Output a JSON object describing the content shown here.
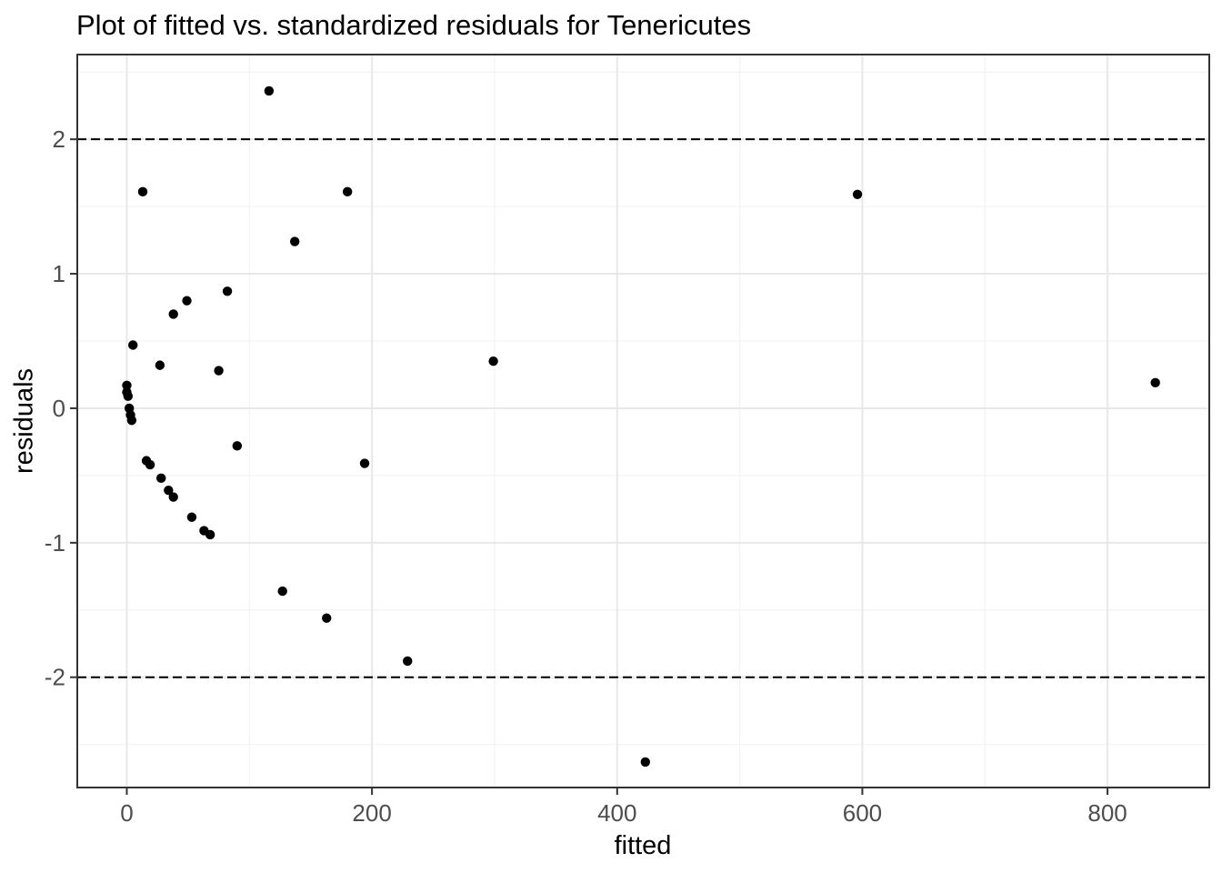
{
  "chart_data": {
    "type": "scatter",
    "title": "Plot of fitted vs. standardized residuals for Tenericutes",
    "xlabel": "fitted",
    "ylabel": "residuals",
    "xlim": [
      -40.4,
      883
    ],
    "ylim": [
      -2.82,
      2.63
    ],
    "x_major_ticks": [
      0,
      200,
      400,
      600,
      800
    ],
    "x_minor_gridlines": [
      100,
      300,
      500,
      700
    ],
    "y_major_ticks": [
      -2,
      -1,
      0,
      1,
      2
    ],
    "y_minor_gridlines": [
      -2.5,
      -1.5,
      -0.5,
      0.5,
      1.5,
      2.5
    ],
    "reference_lines": [
      {
        "y": 2,
        "style": "dashed"
      },
      {
        "y": -2,
        "style": "dashed"
      }
    ],
    "grid": true,
    "legend": "none",
    "points": [
      [
        116,
        2.36
      ],
      [
        13,
        1.61
      ],
      [
        180,
        1.61
      ],
      [
        596,
        1.59
      ],
      [
        137,
        1.24
      ],
      [
        82,
        0.87
      ],
      [
        49,
        0.8
      ],
      [
        38,
        0.7
      ],
      [
        5,
        0.47
      ],
      [
        299,
        0.35
      ],
      [
        27,
        0.32
      ],
      [
        75,
        0.28
      ],
      [
        839,
        0.19
      ],
      [
        0,
        0.17
      ],
      [
        0,
        0.12
      ],
      [
        1,
        0.09
      ],
      [
        2,
        0.0
      ],
      [
        3,
        -0.05
      ],
      [
        4,
        -0.09
      ],
      [
        90,
        -0.28
      ],
      [
        16,
        -0.39
      ],
      [
        19,
        -0.42
      ],
      [
        194,
        -0.41
      ],
      [
        28,
        -0.52
      ],
      [
        34,
        -0.61
      ],
      [
        38,
        -0.66
      ],
      [
        53,
        -0.81
      ],
      [
        63,
        -0.91
      ],
      [
        68,
        -0.94
      ],
      [
        127,
        -1.36
      ],
      [
        163,
        -1.56
      ],
      [
        229,
        -1.88
      ],
      [
        423,
        -2.63
      ]
    ]
  },
  "colors": {
    "background": "#ffffff",
    "panel_background": "#ffffff",
    "grid_major": "#e8e8e8",
    "grid_minor": "#f3f3f3",
    "panel_border": "#333333",
    "tick_mark": "#333333",
    "tick_label": "#4d4d4d",
    "point": "#000000",
    "reference_line": "#000000",
    "title": "#000000",
    "axis_title": "#000000"
  }
}
